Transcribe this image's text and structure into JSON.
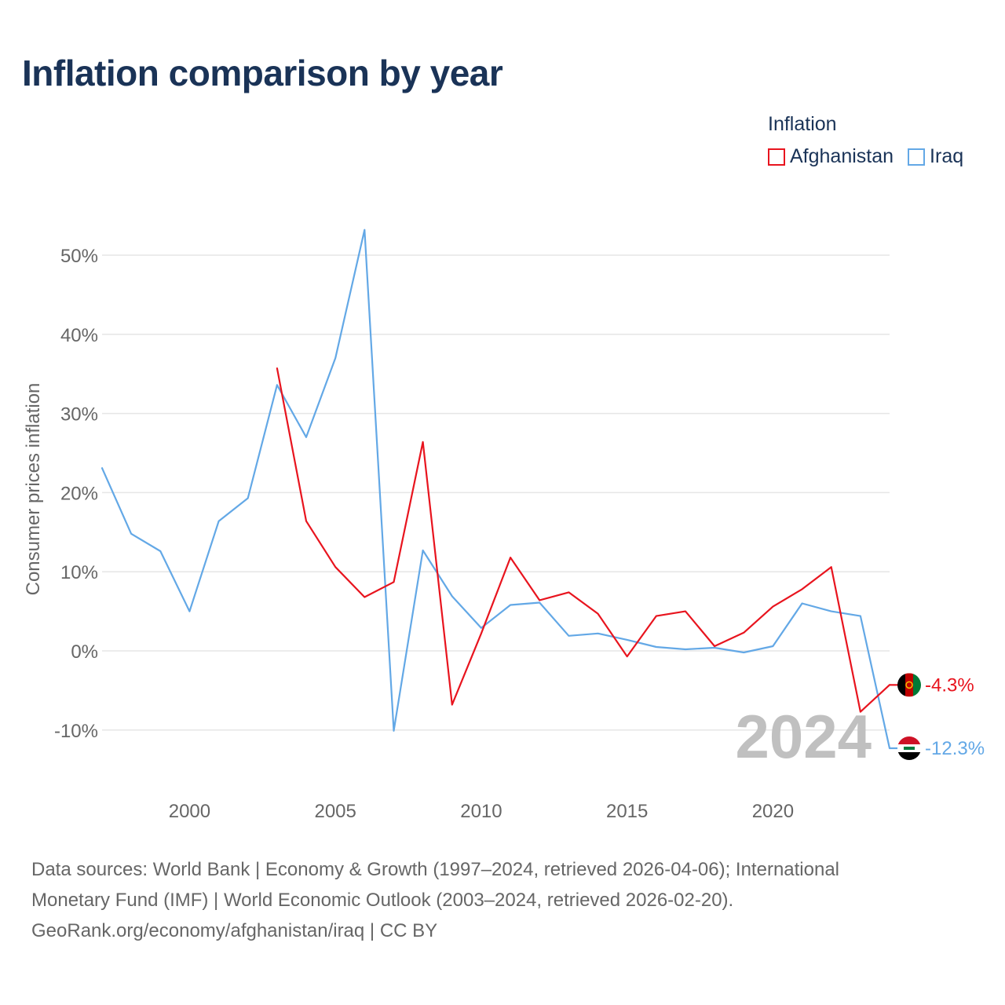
{
  "title": "Inflation comparison by year",
  "legend": {
    "title": "Inflation",
    "items": [
      {
        "label": "Afghanistan",
        "color": "#e8141e"
      },
      {
        "label": "Iraq",
        "color": "#63a8e6"
      }
    ]
  },
  "chart_data": {
    "type": "line",
    "title": "Inflation comparison by year",
    "xlabel": "",
    "ylabel": "Consumer prices inflation",
    "xlim": [
      1997,
      2024
    ],
    "ylim": [
      -16,
      56
    ],
    "yticks": [
      -10,
      0,
      10,
      20,
      30,
      40,
      50
    ],
    "ytick_labels": [
      "-10%",
      "0%",
      "10%",
      "20%",
      "30%",
      "40%",
      "50%"
    ],
    "xticks": [
      2000,
      2005,
      2010,
      2015,
      2020
    ],
    "xtick_labels": [
      "2000",
      "2005",
      "2010",
      "2015",
      "2020"
    ],
    "grid": true,
    "year_watermark": "2024",
    "series": [
      {
        "name": "Afghanistan",
        "color": "#e8141e",
        "end_label": "-4.3%",
        "points": [
          [
            2003,
            35.7
          ],
          [
            2004,
            16.4
          ],
          [
            2005,
            10.6
          ],
          [
            2006,
            6.8
          ],
          [
            2007,
            8.7
          ],
          [
            2008,
            26.4
          ],
          [
            2009,
            -6.8
          ],
          [
            2010,
            2.2
          ],
          [
            2011,
            11.8
          ],
          [
            2012,
            6.4
          ],
          [
            2013,
            7.4
          ],
          [
            2014,
            4.7
          ],
          [
            2015,
            -0.7
          ],
          [
            2016,
            4.4
          ],
          [
            2017,
            5.0
          ],
          [
            2018,
            0.6
          ],
          [
            2019,
            2.3
          ],
          [
            2020,
            5.6
          ],
          [
            2021,
            7.8
          ],
          [
            2022,
            10.6
          ],
          [
            2023,
            -7.7
          ],
          [
            2024,
            -4.3
          ]
        ]
      },
      {
        "name": "Iraq",
        "color": "#63a8e6",
        "end_label": "-12.3%",
        "points": [
          [
            1997,
            23.1
          ],
          [
            1998,
            14.8
          ],
          [
            1999,
            12.6
          ],
          [
            2000,
            5.0
          ],
          [
            2001,
            16.4
          ],
          [
            2002,
            19.3
          ],
          [
            2003,
            33.6
          ],
          [
            2004,
            27.0
          ],
          [
            2005,
            37.0
          ],
          [
            2006,
            53.2
          ],
          [
            2007,
            -10.1
          ],
          [
            2008,
            12.7
          ],
          [
            2009,
            6.9
          ],
          [
            2010,
            2.9
          ],
          [
            2011,
            5.8
          ],
          [
            2012,
            6.1
          ],
          [
            2013,
            1.9
          ],
          [
            2014,
            2.2
          ],
          [
            2015,
            1.4
          ],
          [
            2016,
            0.5
          ],
          [
            2017,
            0.2
          ],
          [
            2018,
            0.4
          ],
          [
            2019,
            -0.2
          ],
          [
            2020,
            0.6
          ],
          [
            2021,
            6.0
          ],
          [
            2022,
            5.0
          ],
          [
            2023,
            4.4
          ],
          [
            2024,
            -12.3
          ]
        ]
      }
    ]
  },
  "source": {
    "line1": "Data sources: World Bank | Economy & Growth (1997–2024, retrieved 2026-04-06); International",
    "line2": "Monetary Fund (IMF) | World Economic Outlook (2003–2024, retrieved 2026-02-20).",
    "line3": "GeoRank.org/economy/afghanistan/iraq | CC BY"
  }
}
